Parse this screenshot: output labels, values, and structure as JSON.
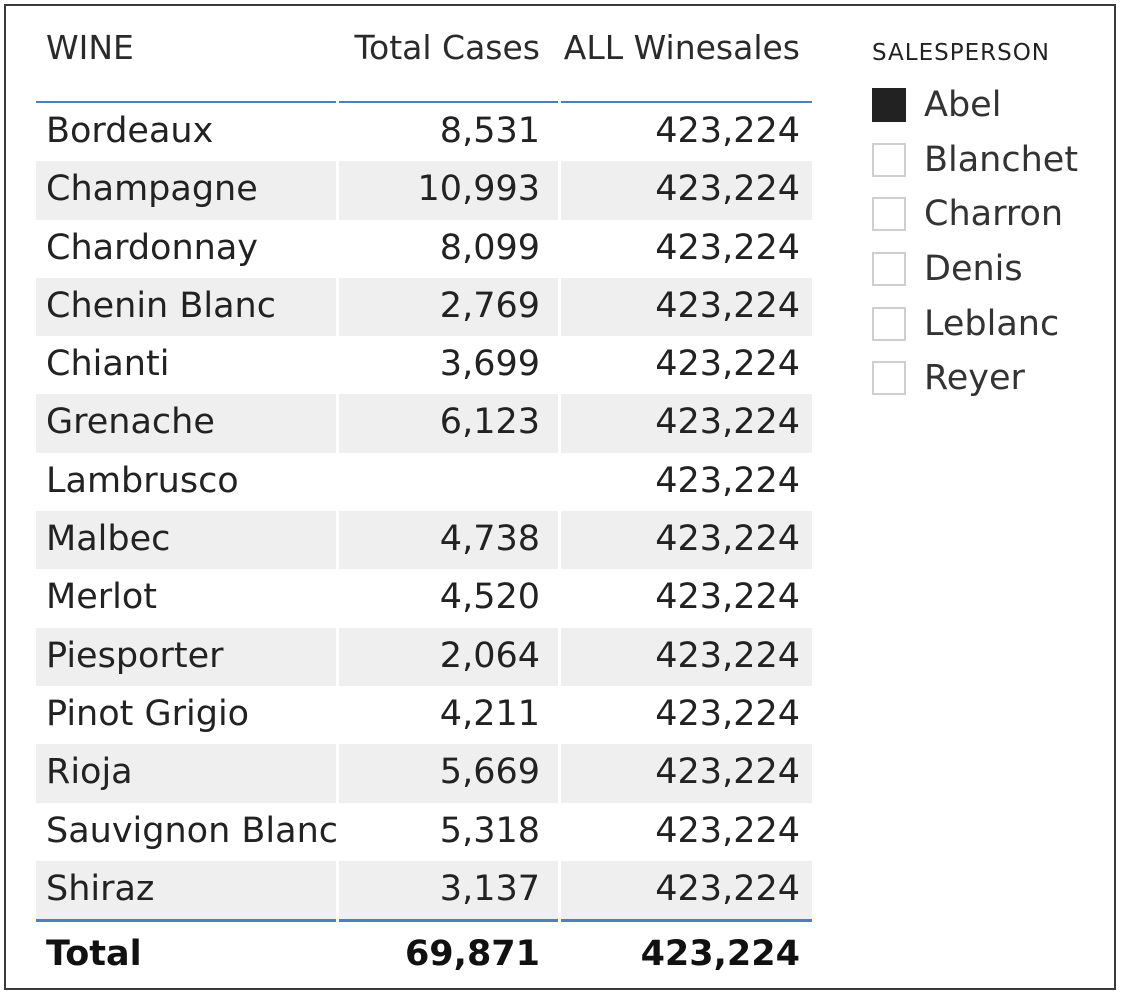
{
  "table": {
    "headers": [
      "WINE",
      "Total Cases",
      "ALL Winesales"
    ],
    "rows": [
      {
        "wine": "Bordeaux",
        "cases": "8,531",
        "all": "423,224"
      },
      {
        "wine": "Champagne",
        "cases": "10,993",
        "all": "423,224"
      },
      {
        "wine": "Chardonnay",
        "cases": "8,099",
        "all": "423,224"
      },
      {
        "wine": "Chenin Blanc",
        "cases": "2,769",
        "all": "423,224"
      },
      {
        "wine": "Chianti",
        "cases": "3,699",
        "all": "423,224"
      },
      {
        "wine": "Grenache",
        "cases": "6,123",
        "all": "423,224"
      },
      {
        "wine": "Lambrusco",
        "cases": "",
        "all": "423,224"
      },
      {
        "wine": "Malbec",
        "cases": "4,738",
        "all": "423,224"
      },
      {
        "wine": "Merlot",
        "cases": "4,520",
        "all": "423,224"
      },
      {
        "wine": "Piesporter",
        "cases": "2,064",
        "all": "423,224"
      },
      {
        "wine": "Pinot Grigio",
        "cases": "4,211",
        "all": "423,224"
      },
      {
        "wine": "Rioja",
        "cases": "5,669",
        "all": "423,224"
      },
      {
        "wine": "Sauvignon Blanc",
        "cases": "5,318",
        "all": "423,224"
      },
      {
        "wine": "Shiraz",
        "cases": "3,137",
        "all": "423,224"
      }
    ],
    "total": {
      "label": "Total",
      "cases": "69,871",
      "all": "423,224"
    }
  },
  "slicer": {
    "title": "SALESPERSON",
    "items": [
      {
        "label": "Abel",
        "checked": true
      },
      {
        "label": "Blanchet",
        "checked": false
      },
      {
        "label": "Charron",
        "checked": false
      },
      {
        "label": "Denis",
        "checked": false
      },
      {
        "label": "Leblanc",
        "checked": false
      },
      {
        "label": "Reyer",
        "checked": false
      }
    ]
  },
  "colors": {
    "accent_rule": "#4a7fc1",
    "row_alt": "#efefef",
    "checked_box": "#222222"
  }
}
